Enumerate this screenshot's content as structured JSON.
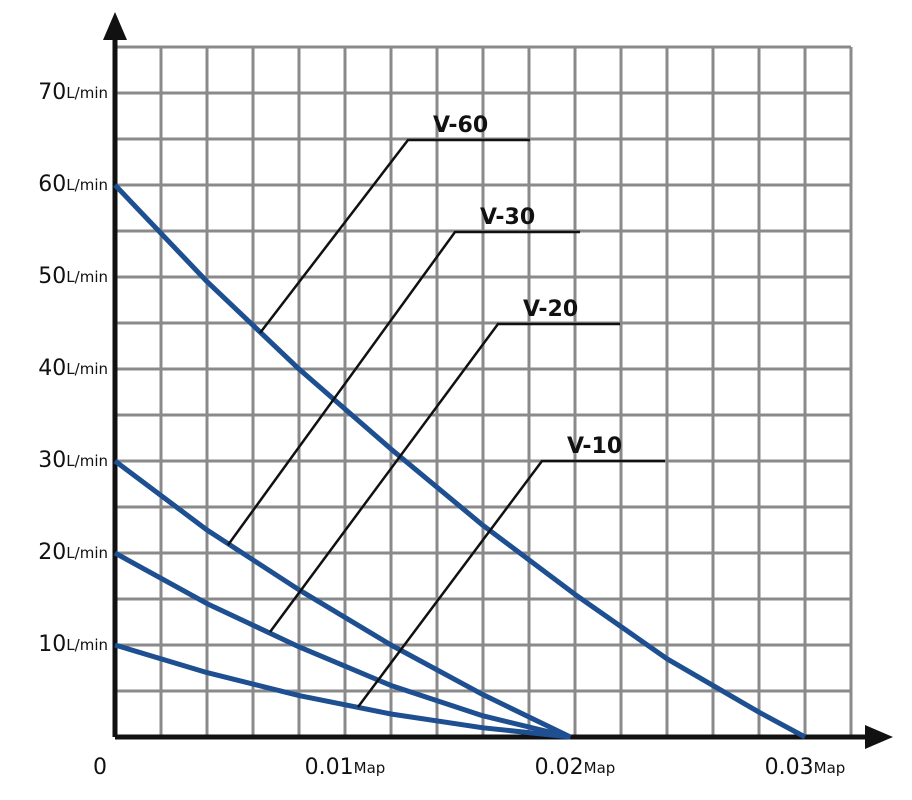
{
  "chart_data": {
    "type": "line",
    "xlim": [
      0,
      0.032
    ],
    "ylim": [
      0,
      75
    ],
    "xticks": [
      0,
      {
        "value": 0.01,
        "label": "0.01Map"
      },
      {
        "value": 0.02,
        "label": "0.02Map"
      },
      {
        "value": 0.03,
        "label": "0.03Map"
      }
    ],
    "yticks": [
      {
        "value": 10,
        "label": "10L/min"
      },
      {
        "value": 20,
        "label": "20L/min"
      },
      {
        "value": 30,
        "label": "30L/min"
      },
      {
        "value": 40,
        "label": "40L/min"
      },
      {
        "value": 50,
        "label": "50L/min"
      },
      {
        "value": 60,
        "label": "60L/min"
      },
      {
        "value": 70,
        "label": "70L/min"
      }
    ],
    "xgrid": [
      0.002,
      0.004,
      0.006,
      0.008,
      0.01,
      0.012,
      0.014,
      0.016,
      0.018,
      0.02,
      0.022,
      0.024,
      0.026,
      0.028,
      0.03,
      0.032
    ],
    "ygrid": [
      5,
      10,
      15,
      20,
      25,
      30,
      35,
      40,
      45,
      50,
      55,
      60,
      65,
      70,
      75
    ],
    "grid": true,
    "grid_color": "#8a8a8a",
    "series": [
      {
        "name": "V-60",
        "color": "#1d4f91",
        "x": [
          0,
          0.004,
          0.008,
          0.012,
          0.016,
          0.02,
          0.024,
          0.028,
          0.03
        ],
        "values": [
          60,
          49.5,
          40,
          31.3,
          23,
          15.5,
          8.5,
          2.7,
          0
        ]
      },
      {
        "name": "V-30",
        "color": "#1d4f91",
        "x": [
          0,
          0.004,
          0.008,
          0.012,
          0.016,
          0.0198
        ],
        "values": [
          30,
          22.5,
          16,
          10,
          4.6,
          0
        ]
      },
      {
        "name": "V-20",
        "color": "#1d4f91",
        "x": [
          0,
          0.004,
          0.008,
          0.012,
          0.016,
          0.0198
        ],
        "values": [
          20,
          14.5,
          9.8,
          5.6,
          2.3,
          0
        ]
      },
      {
        "name": "V-10",
        "color": "#1d4f91",
        "x": [
          0,
          0.004,
          0.008,
          0.012,
          0.016,
          0.0198
        ],
        "values": [
          10,
          7.0,
          4.5,
          2.5,
          1.0,
          0
        ]
      }
    ]
  }
}
